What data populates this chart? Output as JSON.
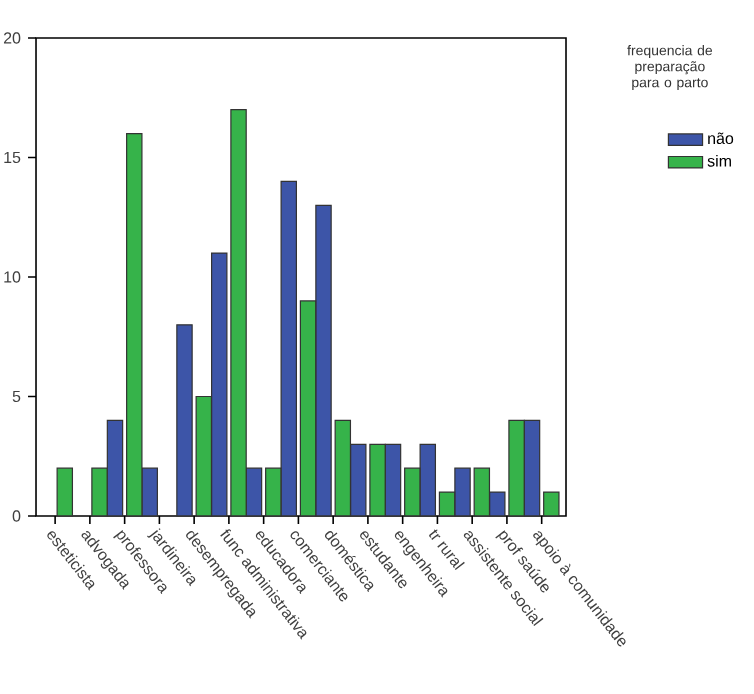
{
  "chart_data": {
    "type": "bar",
    "legend_title": "frequencia de preparação para o parto",
    "legend": "top right",
    "categories": [
      "esteticista",
      "advogada",
      "professora",
      "jardineira",
      "desempregada",
      "func administrativa",
      "educadora",
      "comerciante",
      "doméstica",
      "estudante",
      "engenheira",
      "tr rural",
      "assistente social",
      "prof saúde",
      "apoio à comunidade"
    ],
    "series": [
      {
        "name": "não",
        "color": "#3d55a8",
        "values": [
          0,
          0,
          4,
          2,
          8,
          11,
          2,
          14,
          13,
          3,
          3,
          3,
          2,
          1,
          4
        ]
      },
      {
        "name": "sim",
        "color": "#36b34a",
        "values": [
          2,
          2,
          16,
          0,
          5,
          17,
          2,
          9,
          4,
          3,
          2,
          1,
          2,
          4,
          1
        ]
      }
    ],
    "ylim": [
      0,
      20
    ],
    "yticks": [
      0,
      5,
      10,
      15,
      20
    ],
    "grid": false
  }
}
